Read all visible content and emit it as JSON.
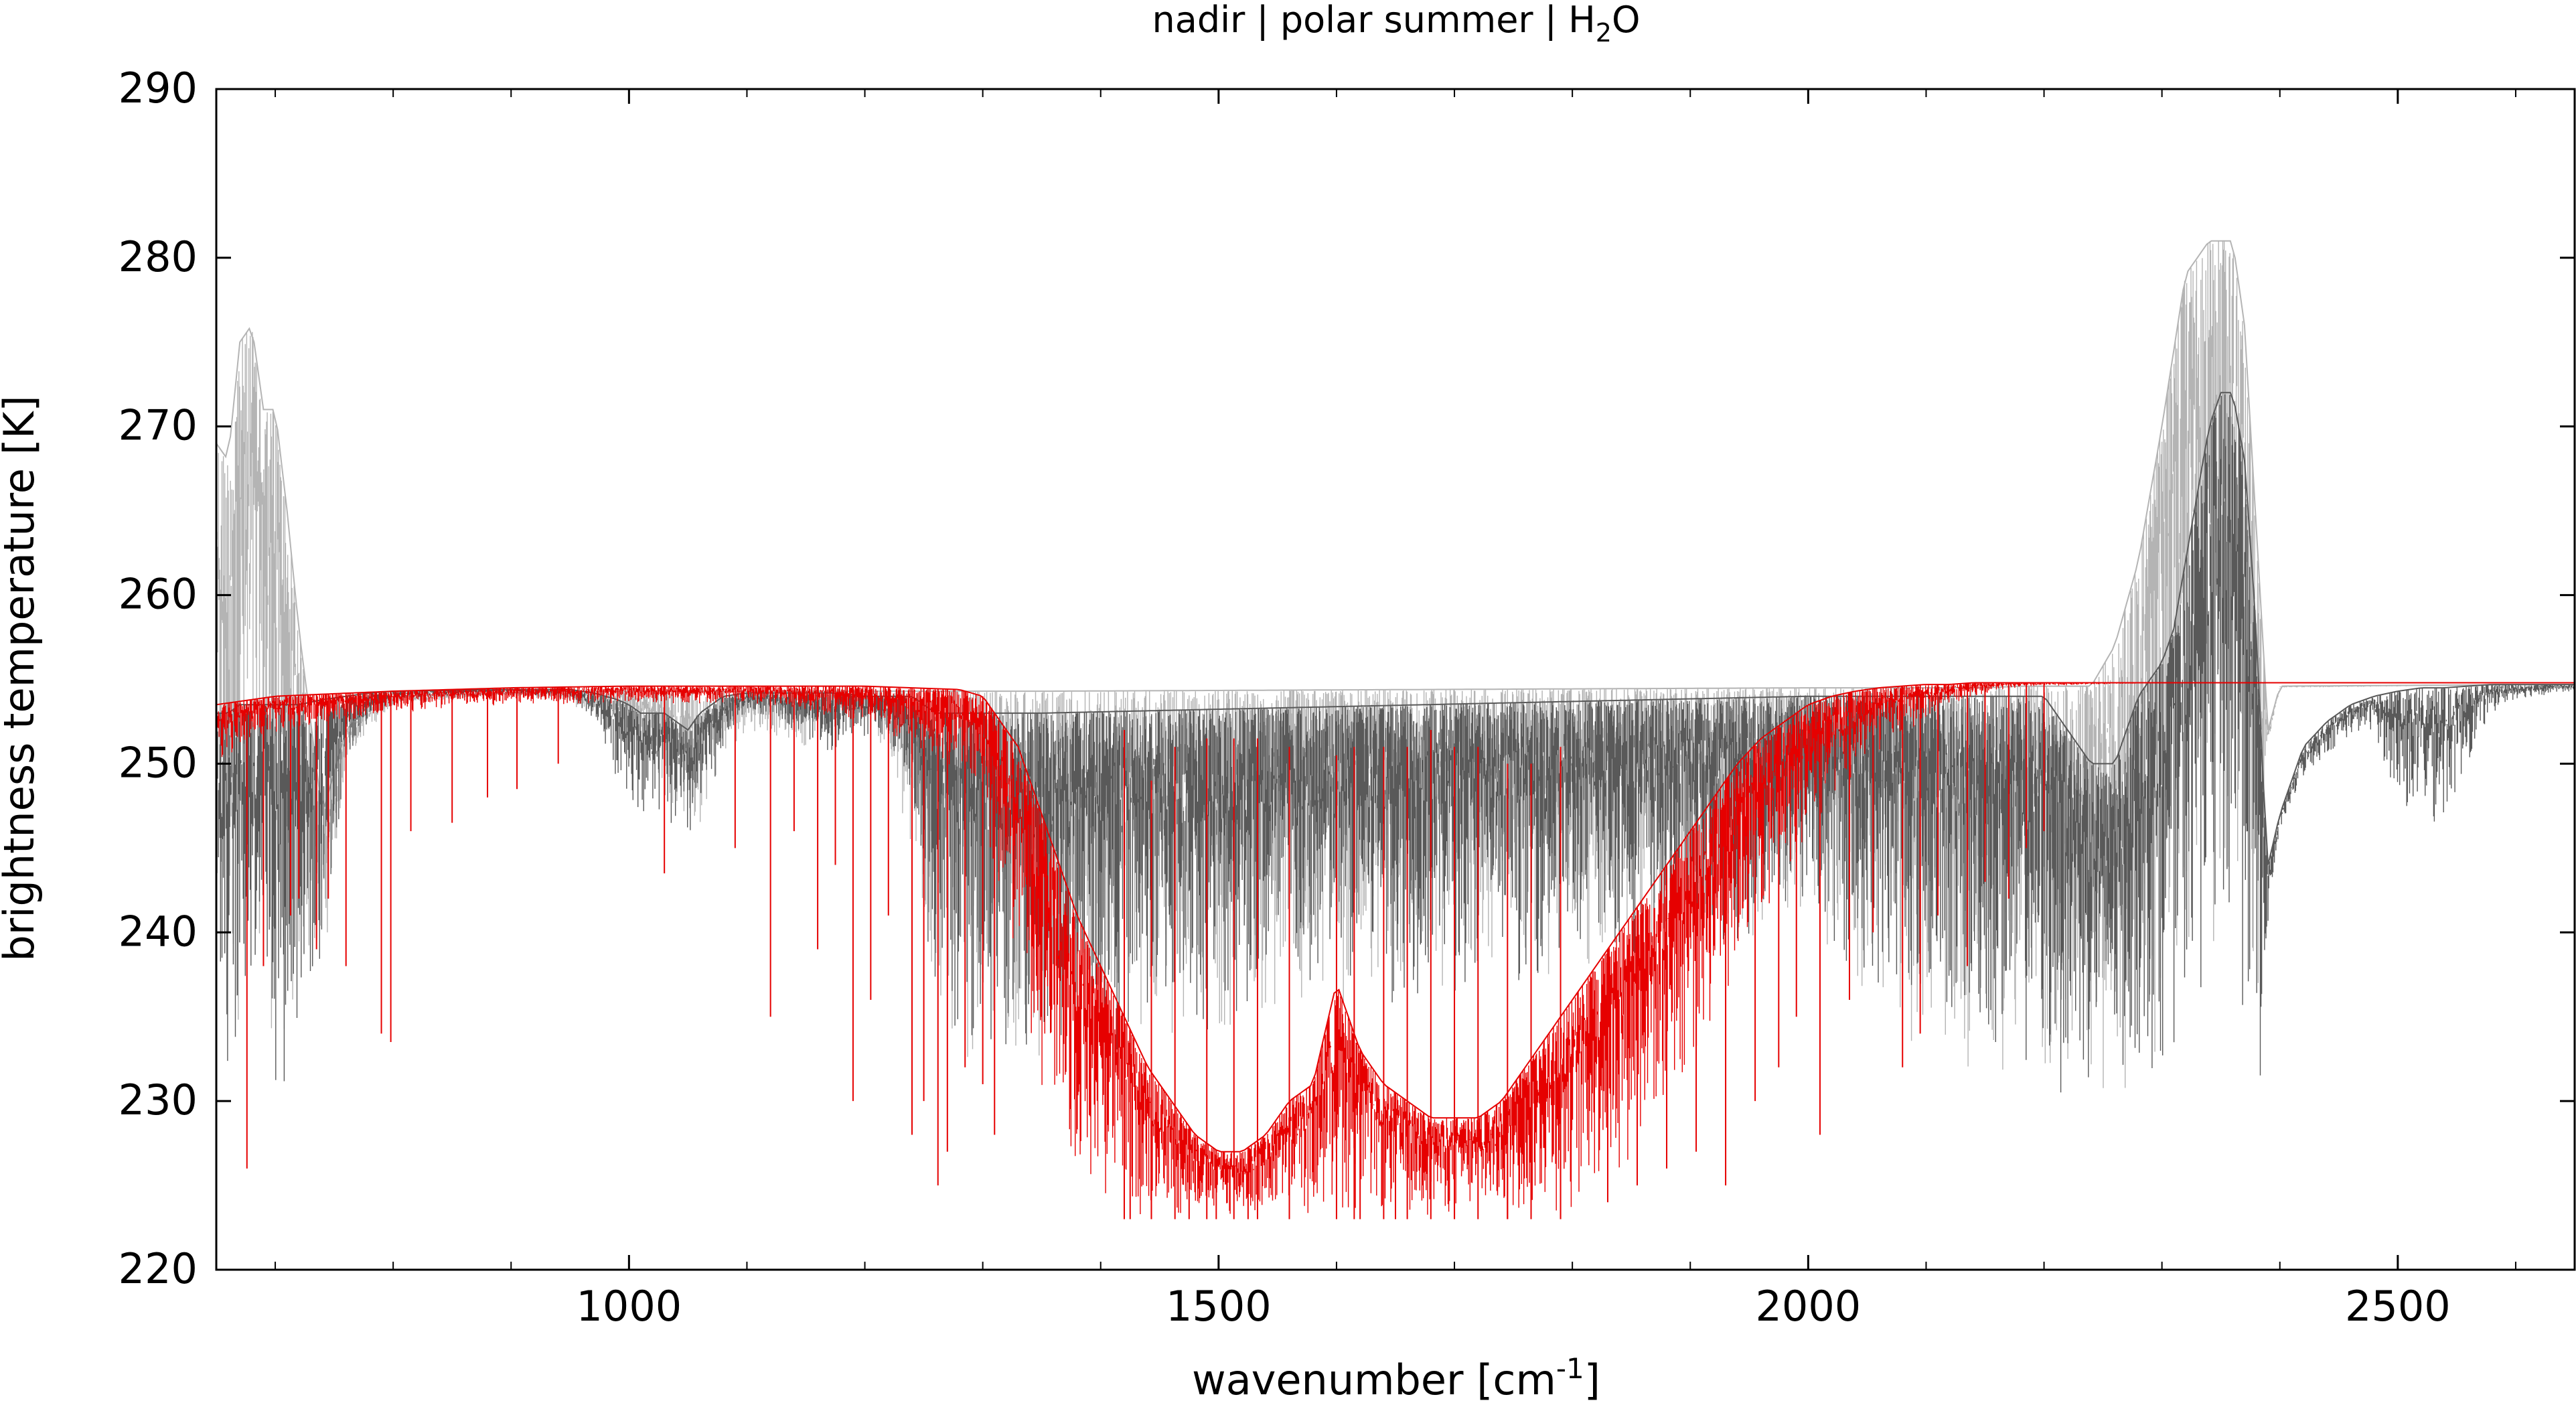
{
  "chart_data": {
    "type": "line",
    "title": {
      "pre": "nadir | polar summer | H",
      "sub": "2",
      "post": "O"
    },
    "xlabel": {
      "pre": "wavenumber [cm",
      "sup": "-1",
      "post": "]"
    },
    "ylabel": "brightness temperature [K]",
    "xlim": [
      650,
      2650
    ],
    "ylim": [
      220,
      290
    ],
    "x_ticks": [
      1000,
      1500,
      2000,
      2500
    ],
    "x_tick_labels": [
      "1000",
      "1500",
      "2000",
      "2500"
    ],
    "x_minor_ticks": [
      700,
      800,
      900,
      1100,
      1200,
      1300,
      1400,
      1600,
      1700,
      1800,
      1900,
      2100,
      2200,
      2300,
      2400,
      2600
    ],
    "y_ticks": [
      220,
      230,
      240,
      250,
      260,
      270,
      280,
      290
    ],
    "y_tick_labels": [
      "220",
      "230",
      "240",
      "250",
      "260",
      "270",
      "280",
      "290"
    ],
    "grid": false,
    "series": [
      {
        "color": "#b4b4b4",
        "envelope": {
          "x": [
            650,
            660,
            670,
            680,
            690,
            700,
            710,
            720,
            740,
            760,
            780,
            800,
            900,
            950,
            1000,
            1020,
            1050,
            1080,
            1100,
            1150,
            1200,
            1220,
            1240,
            1260,
            1280,
            1300,
            1350,
            2000,
            2050,
            2100,
            2150,
            2180,
            2200,
            2220,
            2240,
            2260,
            2280,
            2300,
            2320,
            2340,
            2360,
            2370,
            2380,
            2390,
            2400,
            2650
          ],
          "high": [
            269,
            268,
            275,
            276,
            271,
            271,
            265,
            258,
            247,
            252,
            253.5,
            254,
            254.2,
            254.3,
            254.3,
            254.3,
            254.3,
            254.3,
            254.3,
            254.3,
            254.3,
            254.3,
            254.3,
            254.3,
            254.3,
            254.3,
            254.3,
            254.5,
            254.5,
            254.5,
            254.5,
            254.6,
            254.6,
            254.6,
            254.6,
            257,
            262,
            270,
            279,
            281,
            281,
            276,
            264,
            252,
            254.6,
            254.7
          ],
          "low": [
            232,
            229,
            234,
            236,
            240,
            229,
            231,
            235,
            237,
            250,
            252,
            253.5,
            254.1,
            253.5,
            252,
            250,
            244.5,
            250,
            252,
            251,
            253,
            250,
            242,
            235,
            232,
            232,
            232,
            240,
            236,
            232,
            231,
            231,
            230,
            229.5,
            230,
            230,
            231,
            232,
            234,
            236,
            237,
            237,
            229,
            251,
            254.5,
            254.7
          ]
        }
      },
      {
        "color": "#595959",
        "envelope": {
          "x": [
            650,
            660,
            670,
            680,
            690,
            700,
            710,
            720,
            740,
            760,
            780,
            800,
            900,
            950,
            970,
            990,
            1000,
            1010,
            1020,
            1030,
            1040,
            1050,
            1060,
            1070,
            1080,
            1100,
            1130,
            1150,
            1170,
            1190,
            1200,
            1220,
            1240,
            1250,
            1260,
            1270,
            1280,
            1290,
            1300,
            1350,
            2000,
            2020,
            2040,
            2060,
            2080,
            2100,
            2120,
            2140,
            2160,
            2180,
            2200,
            2210,
            2220,
            2230,
            2240,
            2250,
            2260,
            2270,
            2280,
            2290,
            2300,
            2310,
            2320,
            2330,
            2340,
            2350,
            2360,
            2370,
            2380,
            2385,
            2390,
            2400,
            2420,
            2440,
            2460,
            2480,
            2500,
            2520,
            2540,
            2560,
            2580,
            2600,
            2620,
            2650
          ],
          "high": [
            253,
            253,
            253.5,
            253.5,
            253.5,
            253.5,
            253.5,
            253.5,
            253.8,
            254,
            254.2,
            254.3,
            254.4,
            254.4,
            254.2,
            253.8,
            253.5,
            253,
            253,
            253,
            252.5,
            252,
            253,
            253.5,
            254,
            254.2,
            254.2,
            254.2,
            254.2,
            254.1,
            254,
            254,
            254,
            253.5,
            253,
            253,
            253,
            253,
            253,
            253,
            254,
            254,
            254,
            254,
            254,
            254,
            254,
            254,
            254,
            254,
            254,
            253,
            252,
            251,
            250,
            250,
            250,
            252,
            254,
            255,
            256,
            258,
            262,
            266,
            270,
            272,
            272,
            268,
            258,
            250,
            244,
            247,
            251,
            252.5,
            253.5,
            254,
            254.3,
            254.5,
            254.5,
            254.6,
            254.7,
            254.7,
            254.7,
            254.7
          ],
          "low": [
            235,
            231,
            232,
            236,
            238,
            229.5,
            230,
            233,
            237,
            250,
            252.5,
            253.8,
            254.2,
            253.8,
            252.5,
            249,
            248,
            247,
            246.5,
            246,
            245,
            244,
            246,
            248,
            251,
            253,
            252.5,
            251.5,
            250.5,
            251,
            251.5,
            251.5,
            247,
            240,
            236,
            234,
            232,
            232,
            232,
            232,
            240,
            238,
            237,
            236,
            236,
            235,
            234,
            233,
            232,
            231,
            230.5,
            230,
            230,
            229.5,
            229.5,
            229.5,
            229.5,
            230,
            230.5,
            231,
            232,
            233,
            234,
            235,
            236,
            236.5,
            236,
            234,
            229,
            229,
            240,
            246,
            249,
            250.5,
            251.5,
            252,
            247,
            246,
            246,
            250,
            253,
            253.8,
            254,
            254.3
          ]
        }
      },
      {
        "color": "#e60000",
        "envelope": {
          "x": [
            650,
            700,
            800,
            900,
            1000,
            1100,
            1200,
            1280,
            1300,
            1310,
            1320,
            1330,
            1340,
            1350,
            1360,
            1370,
            1380,
            1400,
            1420,
            1440,
            1460,
            1480,
            1500,
            1520,
            1540,
            1560,
            1580,
            1600,
            1620,
            1640,
            1660,
            1680,
            1700,
            1720,
            1740,
            1760,
            1780,
            1800,
            1820,
            1840,
            1860,
            1880,
            1900,
            1920,
            1940,
            1960,
            1980,
            2000,
            2020,
            2040,
            2060,
            2080,
            2100,
            2120,
            2140,
            2160,
            2180,
            2200,
            2250,
            2300,
            2350,
            2400,
            2650
          ],
          "high": [
            253.5,
            254,
            254.3,
            254.5,
            254.6,
            254.6,
            254.6,
            254.4,
            254,
            253,
            252,
            251,
            249,
            247,
            245,
            243,
            241,
            238,
            235,
            232,
            230,
            228,
            227,
            227,
            228,
            230,
            231,
            237,
            233,
            231,
            230,
            229,
            229,
            229,
            230,
            232,
            234,
            236,
            238,
            240,
            242,
            244,
            246,
            248,
            250,
            251.5,
            252.5,
            253.5,
            254,
            254.3,
            254.5,
            254.6,
            254.7,
            254.7,
            254.8,
            254.8,
            254.8,
            254.8,
            254.8,
            254.8,
            254.8,
            254.8,
            254.8
          ],
          "low": [
            250,
            251.5,
            253,
            253.5,
            253.5,
            253.5,
            252.5,
            249,
            247,
            243,
            240,
            237,
            234,
            231,
            228,
            226,
            224.5,
            223.5,
            223,
            223,
            223,
            223,
            223,
            223,
            223,
            223,
            223,
            223,
            223,
            223,
            223,
            223,
            223,
            223,
            223,
            223,
            223,
            223,
            224,
            225,
            227,
            229,
            231,
            234,
            237,
            240,
            243,
            245,
            247,
            249,
            250.5,
            251.5,
            252.5,
            253.5,
            254,
            254.3,
            254.5,
            254.6,
            254.7,
            254.8,
            254.8,
            254.8,
            254.8
          ]
        },
        "deep_lines": [
          [
            676,
            226
          ],
          [
            690,
            238
          ],
          [
            713,
            241
          ],
          [
            720,
            242
          ],
          [
            735,
            239
          ],
          [
            745,
            242
          ],
          [
            760,
            238
          ],
          [
            790,
            234
          ],
          [
            798,
            233.5
          ],
          [
            815,
            246
          ],
          [
            850,
            246.5
          ],
          [
            880,
            248
          ],
          [
            905,
            248.5
          ],
          [
            940,
            250
          ],
          [
            1030,
            243.5
          ],
          [
            1090,
            245
          ],
          [
            1120,
            235
          ],
          [
            1140,
            246
          ],
          [
            1160,
            239
          ],
          [
            1175,
            244
          ],
          [
            1190,
            230
          ],
          [
            1205,
            236
          ],
          [
            1220,
            241
          ],
          [
            1240,
            228
          ],
          [
            1250,
            230
          ],
          [
            1262,
            225
          ],
          [
            1270,
            227
          ],
          [
            1285,
            232
          ],
          [
            1300,
            231
          ],
          [
            1310,
            228
          ],
          [
            1425,
            223
          ],
          [
            1443,
            223
          ],
          [
            1475,
            223
          ],
          [
            1498,
            223
          ],
          [
            1525,
            223
          ],
          [
            1560,
            223
          ],
          [
            1620,
            223
          ],
          [
            1650,
            223
          ],
          [
            1700,
            223
          ],
          [
            1745,
            223
          ],
          [
            1790,
            223
          ],
          [
            1830,
            224
          ],
          [
            1855,
            225
          ],
          [
            1880,
            226
          ],
          [
            1905,
            227
          ],
          [
            1930,
            225
          ],
          [
            1955,
            230
          ],
          [
            1975,
            232
          ],
          [
            1990,
            235
          ],
          [
            2010,
            228
          ],
          [
            2035,
            236
          ],
          [
            2055,
            240
          ],
          [
            2080,
            232
          ],
          [
            2095,
            234
          ],
          [
            2110,
            241
          ],
          [
            2135,
            238
          ],
          [
            2150,
            243
          ],
          [
            2170,
            242
          ],
          [
            2185,
            245
          ],
          [
            2200,
            246
          ]
        ],
        "tall_lines": [
          [
            1420,
            252
          ],
          [
            1443,
            249
          ],
          [
            1463,
            251
          ],
          [
            1490,
            251.5
          ],
          [
            1513,
            251.5
          ],
          [
            1533,
            251.5
          ],
          [
            1560,
            251
          ],
          [
            1600,
            250.5
          ],
          [
            1615,
            251
          ],
          [
            1640,
            251
          ],
          [
            1660,
            251
          ],
          [
            1680,
            252
          ],
          [
            1700,
            251
          ],
          [
            1720,
            251
          ],
          [
            1745,
            250
          ],
          [
            1765,
            250
          ],
          [
            1790,
            251
          ]
        ]
      }
    ]
  }
}
